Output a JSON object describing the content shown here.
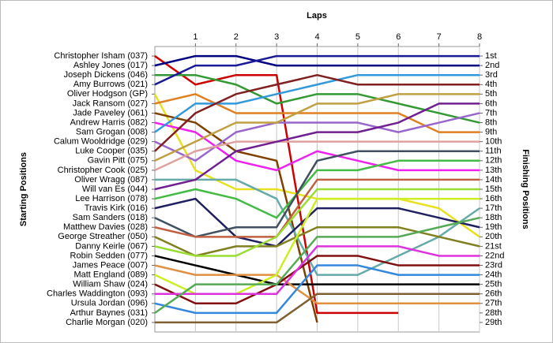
{
  "chart_data": {
    "type": "line",
    "title": "Laps",
    "ylabel": "Starting Positions",
    "y2label": "Finishing Positions",
    "x": [
      0,
      1,
      2,
      3,
      4,
      5,
      6,
      7,
      8
    ],
    "xlim": [
      0,
      8
    ],
    "xticks": [
      1,
      2,
      3,
      4,
      5,
      6,
      7,
      8
    ],
    "ylim": [
      30,
      0
    ],
    "y2lim": [
      30,
      0
    ],
    "grid": true,
    "yticks": [
      {
        "value": 1,
        "label": "Christopher Isham (037)"
      },
      {
        "value": 2,
        "label": "Ashley Jones (017)"
      },
      {
        "value": 3,
        "label": "Joseph Dickens (046)"
      },
      {
        "value": 4,
        "label": "Amy Burrows (021)"
      },
      {
        "value": 5,
        "label": "Oliver Hodgson (GP)"
      },
      {
        "value": 6,
        "label": "Jack Ransom (027)"
      },
      {
        "value": 7,
        "label": "Jade Paveley (061)"
      },
      {
        "value": 8,
        "label": "Andrew Harris (082)"
      },
      {
        "value": 9,
        "label": "Sam Grogan (008)"
      },
      {
        "value": 10,
        "label": "Calum Wooldridge (029)"
      },
      {
        "value": 11,
        "label": "Luke Cooper (035)"
      },
      {
        "value": 12,
        "label": "Gavin Pitt (075)"
      },
      {
        "value": 13,
        "label": "Christopher Cook (025)"
      },
      {
        "value": 14,
        "label": "Oliver Wragg (087)"
      },
      {
        "value": 15,
        "label": "Will van Es (044)"
      },
      {
        "value": 16,
        "label": "Lee Harrison (078)"
      },
      {
        "value": 17,
        "label": "Travis Kirk (016)"
      },
      {
        "value": 18,
        "label": "Sam Sanders (018)"
      },
      {
        "value": 19,
        "label": "Matthew Davies (028)"
      },
      {
        "value": 20,
        "label": "George Streather (050)"
      },
      {
        "value": 21,
        "label": "Danny Keirle (067)"
      },
      {
        "value": 22,
        "label": "Robin Sedden (077)"
      },
      {
        "value": 23,
        "label": "James Peace (007)"
      },
      {
        "value": 24,
        "label": "Matt England (089)"
      },
      {
        "value": 25,
        "label": "William Shaw (024)"
      },
      {
        "value": 26,
        "label": "Charles Waddington (093)"
      },
      {
        "value": 27,
        "label": "Ursula Jordan (096)"
      },
      {
        "value": 28,
        "label": "Arthur Baynes (031)"
      },
      {
        "value": 29,
        "label": "Charlie Morgan (020)"
      }
    ],
    "y2ticks": [
      {
        "value": 1,
        "label": "1st"
      },
      {
        "value": 2,
        "label": "2nd"
      },
      {
        "value": 3,
        "label": "3rd"
      },
      {
        "value": 4,
        "label": "4th"
      },
      {
        "value": 5,
        "label": "5th"
      },
      {
        "value": 6,
        "label": "6th"
      },
      {
        "value": 7,
        "label": "7th"
      },
      {
        "value": 8,
        "label": "8th"
      },
      {
        "value": 9,
        "label": "9th"
      },
      {
        "value": 10,
        "label": "10th"
      },
      {
        "value": 11,
        "label": "11th"
      },
      {
        "value": 12,
        "label": "12th"
      },
      {
        "value": 13,
        "label": "13th"
      },
      {
        "value": 14,
        "label": "14th"
      },
      {
        "value": 15,
        "label": "15th"
      },
      {
        "value": 16,
        "label": "16th"
      },
      {
        "value": 17,
        "label": "17th"
      },
      {
        "value": 18,
        "label": "18th"
      },
      {
        "value": 19,
        "label": "19th"
      },
      {
        "value": 20,
        "label": "20th"
      },
      {
        "value": 21,
        "label": "21st"
      },
      {
        "value": 22,
        "label": "22nd"
      },
      {
        "value": 23,
        "label": "23rd"
      },
      {
        "value": 24,
        "label": "24th"
      },
      {
        "value": 25,
        "label": "25th"
      },
      {
        "value": 26,
        "label": "26th"
      },
      {
        "value": 27,
        "label": "27th"
      },
      {
        "value": 28,
        "label": "28th"
      },
      {
        "value": 29,
        "label": "29th"
      }
    ],
    "series": [
      {
        "color": "#cc0000",
        "values": [
          1,
          4,
          3,
          3,
          28,
          28,
          28,
          null,
          null
        ]
      },
      {
        "color": "#000080",
        "values": [
          2,
          1,
          1,
          2,
          2,
          2,
          2,
          2,
          2
        ]
      },
      {
        "color": "#339933",
        "values": [
          3,
          3,
          4,
          6,
          5,
          5,
          6,
          7,
          8
        ]
      },
      {
        "color": "#1a1a99",
        "values": [
          4,
          2,
          2,
          1,
          1,
          1,
          1,
          1,
          1
        ]
      },
      {
        "color": "#e8e020",
        "values": [
          5,
          13,
          15,
          15,
          16,
          16,
          16,
          17,
          20
        ]
      },
      {
        "color": "#e08020",
        "values": [
          6,
          5,
          7,
          7,
          7,
          7,
          7,
          9,
          9
        ]
      },
      {
        "color": "#804000",
        "values": [
          7,
          8,
          11,
          12,
          29,
          null,
          null,
          null,
          null
        ]
      },
      {
        "color": "#ee22ee",
        "values": [
          8,
          9,
          12,
          13,
          11,
          12,
          13,
          13,
          13
        ]
      },
      {
        "color": "#3399dd",
        "values": [
          9,
          6,
          6,
          5,
          4,
          3,
          3,
          3,
          3
        ]
      },
      {
        "color": "#9966cc",
        "values": [
          10,
          12,
          9,
          8,
          8,
          8,
          9,
          8,
          7
        ]
      },
      {
        "color": "#802020",
        "values": [
          11,
          7,
          5,
          4,
          3,
          4,
          4,
          4,
          4
        ]
      },
      {
        "color": "#c0a040",
        "values": [
          12,
          10,
          8,
          8,
          6,
          6,
          5,
          5,
          5
        ]
      },
      {
        "color": "#e0a0a0",
        "values": [
          13,
          11,
          10,
          10,
          10,
          10,
          10,
          10,
          10
        ]
      },
      {
        "color": "#66aaaa",
        "values": [
          14,
          14,
          14,
          16,
          24,
          24,
          22,
          20,
          17
        ]
      },
      {
        "color": "#702090",
        "values": [
          15,
          14,
          11,
          10,
          9,
          9,
          8,
          6,
          6
        ]
      },
      {
        "color": "#44bb44",
        "values": [
          16,
          15,
          16,
          18,
          13,
          13,
          12,
          12,
          12
        ]
      },
      {
        "color": "#202060",
        "values": [
          17,
          16,
          20,
          21,
          17,
          17,
          17,
          18,
          19
        ]
      },
      {
        "color": "#405060",
        "values": [
          18,
          20,
          19,
          19,
          12,
          11,
          11,
          11,
          11
        ]
      },
      {
        "color": "#c06040",
        "values": [
          19,
          20,
          20,
          20,
          14,
          14,
          14,
          14,
          14
        ]
      },
      {
        "color": "#808020",
        "values": [
          20,
          22,
          21,
          21,
          19,
          19,
          19,
          20,
          21
        ]
      },
      {
        "color": "#99dd33",
        "values": [
          21,
          22,
          22,
          20,
          15,
          15,
          15,
          15,
          15
        ]
      },
      {
        "color": "#000000",
        "values": [
          22,
          23,
          24,
          25,
          25,
          25,
          25,
          25,
          25
        ]
      },
      {
        "color": "#e09040",
        "values": [
          23,
          24,
          24,
          24,
          27,
          27,
          27,
          27,
          27
        ]
      },
      {
        "color": "#ccee22",
        "values": [
          24,
          26,
          26,
          24,
          16,
          16,
          16,
          16,
          16
        ]
      },
      {
        "color": "#801010",
        "values": [
          25,
          27,
          27,
          25,
          22,
          22,
          23,
          23,
          23
        ]
      },
      {
        "color": "#dd33dd",
        "values": [
          26,
          26,
          26,
          26,
          21,
          21,
          21,
          22,
          22
        ]
      },
      {
        "color": "#3388dd",
        "values": [
          27,
          28,
          28,
          28,
          23,
          23,
          24,
          24,
          24
        ]
      },
      {
        "color": "#55aa55",
        "values": [
          28,
          25,
          25,
          25,
          20,
          20,
          20,
          19,
          18
        ]
      },
      {
        "color": "#806030",
        "values": [
          29,
          29,
          29,
          29,
          26,
          26,
          26,
          26,
          26
        ]
      }
    ]
  }
}
